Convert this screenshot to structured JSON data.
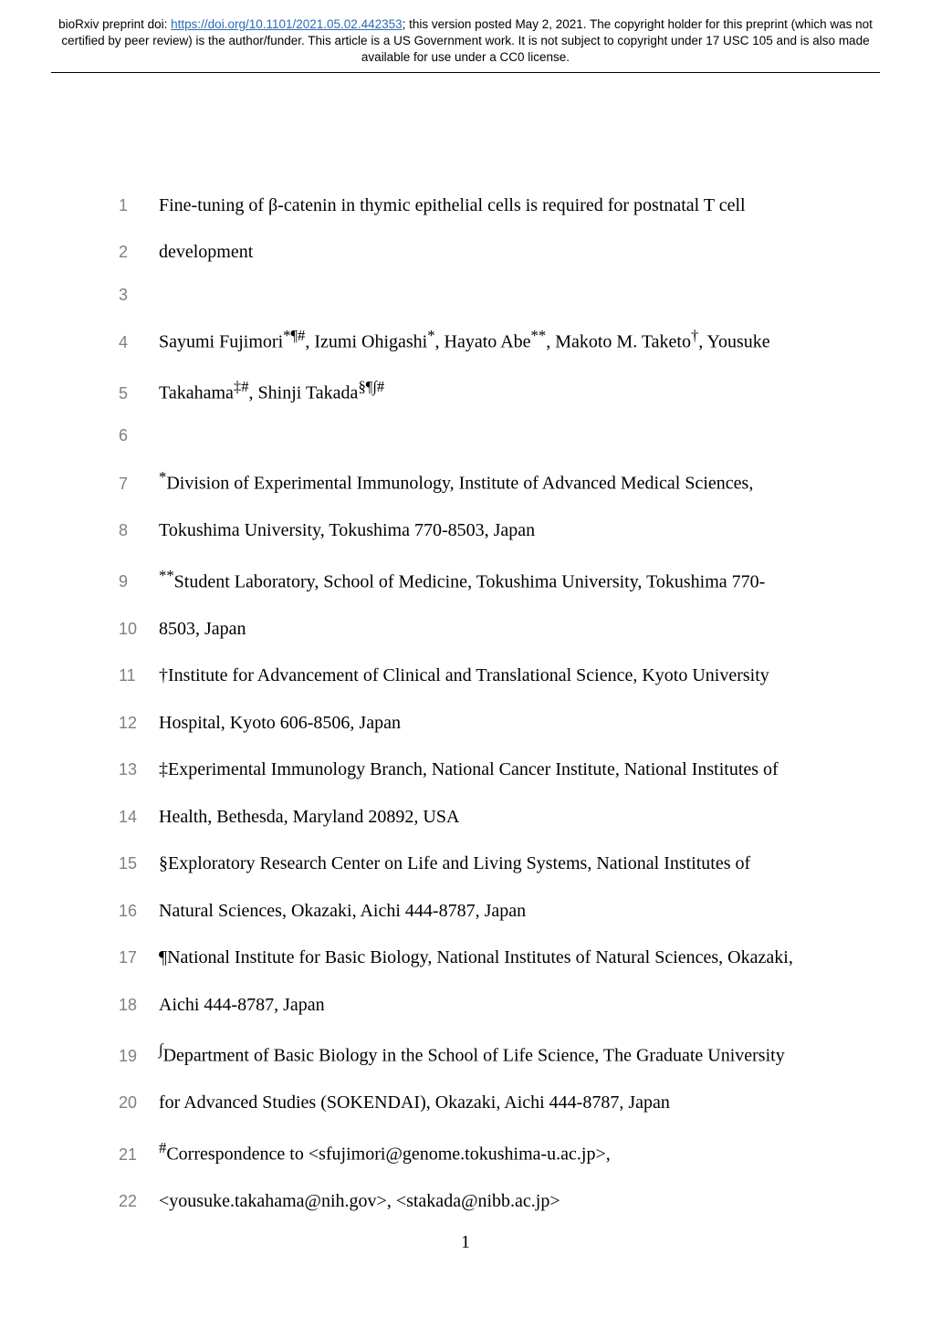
{
  "header": {
    "prefix": "bioRxiv preprint doi: ",
    "doi_url": "https://doi.org/10.1101/2021.05.02.442353",
    "after_doi": "; this version posted May 2, 2021. The copyright holder for this preprint (which was not certified by peer review) is the author/funder. This article is a US Government work. It is not subject to copyright under 17 USC 105 and is also made available for use under a CC0 license."
  },
  "lines": [
    {
      "n": "1",
      "html": "Fine-tuning of β-catenin in thymic epithelial cells is required for postnatal T cell"
    },
    {
      "n": "2",
      "html": "development"
    },
    {
      "n": "3",
      "html": ""
    },
    {
      "n": "4",
      "html": "Sayumi Fujimori<sup>*¶#</sup>, Izumi Ohigashi<sup>*</sup>, Hayato Abe<sup>**</sup>, Makoto M. Taketo<sup>†</sup>, Yousuke"
    },
    {
      "n": "5",
      "html": "Takahama<sup>‡#</sup>, Shinji Takada<sup>§¶∫#</sup>"
    },
    {
      "n": "6",
      "html": ""
    },
    {
      "n": "7",
      "html": "<sup>*</sup>Division of Experimental Immunology, Institute of Advanced Medical Sciences,"
    },
    {
      "n": "8",
      "html": "Tokushima University, Tokushima 770-8503, Japan"
    },
    {
      "n": "9",
      "html": "<sup>**</sup>Student Laboratory, School of Medicine, Tokushima University, Tokushima 770-"
    },
    {
      "n": "10",
      "html": "8503, Japan"
    },
    {
      "n": "11",
      "html": "†Institute for Advancement of Clinical and Translational Science, Kyoto University"
    },
    {
      "n": "12",
      "html": "Hospital, Kyoto 606-8506, Japan"
    },
    {
      "n": "13",
      "html": "‡Experimental Immunology Branch, National Cancer Institute, National Institutes of"
    },
    {
      "n": "14",
      "html": "Health, Bethesda, Maryland 20892, USA"
    },
    {
      "n": "15",
      "html": "§Exploratory Research Center on Life and Living Systems, National Institutes of"
    },
    {
      "n": "16",
      "html": "Natural Sciences, Okazaki, Aichi 444-8787, Japan"
    },
    {
      "n": "17",
      "html": "¶National Institute for Basic Biology, National Institutes of Natural Sciences, Okazaki,"
    },
    {
      "n": "18",
      "html": "Aichi 444-8787, Japan"
    },
    {
      "n": "19",
      "html": "<sup>∫</sup>Department of Basic Biology in the School of Life Science, The Graduate University"
    },
    {
      "n": "20",
      "html": "for Advanced Studies (SOKENDAI), Okazaki, Aichi 444-8787, Japan"
    },
    {
      "n": "21",
      "html": "<sup>#</sup>Correspondence to &lt;sfujimori@genome.tokushima-u.ac.jp&gt;,"
    },
    {
      "n": "22",
      "html": "&lt;yousuke.takahama@nih.gov&gt;, &lt;stakada@nibb.ac.jp&gt;"
    }
  ],
  "page_number": "1",
  "colors": {
    "link": "#2a6bb6",
    "lineno": "#7f7f7f",
    "text": "#000000",
    "background": "#ffffff"
  },
  "typography": {
    "body_font": "Times New Roman",
    "body_size_pt": 15,
    "lineno_font": "Arial",
    "lineno_size_pt": 13,
    "header_font": "Arial",
    "header_size_pt": 10
  }
}
